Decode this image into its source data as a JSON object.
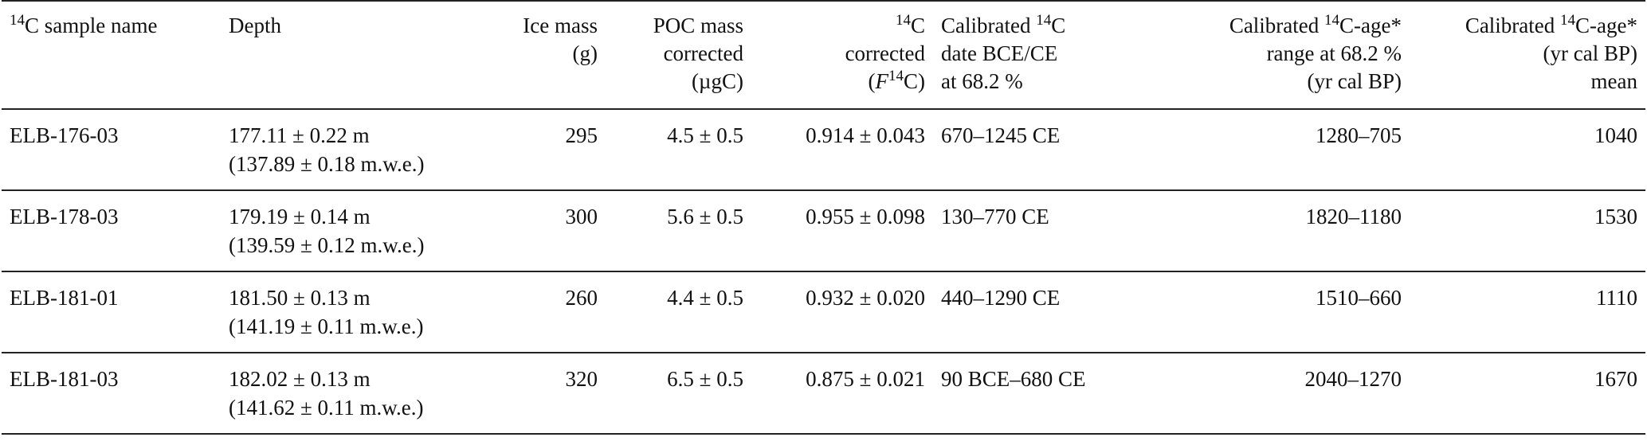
{
  "table": {
    "headers": [
      {
        "id": "sample",
        "lines": [
          [
            [
              "sup",
              "14"
            ],
            [
              "txt",
              "C sample name"
            ]
          ]
        ]
      },
      {
        "id": "depth",
        "lines": [
          [
            [
              "txt",
              "Depth"
            ]
          ]
        ]
      },
      {
        "id": "ice_mass",
        "lines": [
          [
            [
              "txt",
              "Ice mass"
            ]
          ],
          [
            [
              "txt",
              "(g)"
            ]
          ]
        ]
      },
      {
        "id": "poc_mass",
        "lines": [
          [
            [
              "txt",
              "POC mass"
            ]
          ],
          [
            [
              "txt",
              "corrected"
            ]
          ],
          [
            [
              "txt",
              "(µgC)"
            ]
          ]
        ]
      },
      {
        "id": "f14c",
        "lines": [
          [
            [
              "sup",
              "14"
            ],
            [
              "txt",
              "C"
            ]
          ],
          [
            [
              "txt",
              "corrected"
            ]
          ],
          [
            [
              "txt",
              "("
            ],
            [
              "it",
              "F"
            ],
            [
              "sup",
              "14"
            ],
            [
              "txt",
              "C)"
            ]
          ]
        ]
      },
      {
        "id": "cal_date",
        "lines": [
          [
            [
              "txt",
              "Calibrated "
            ],
            [
              "sup",
              "14"
            ],
            [
              "txt",
              "C"
            ]
          ],
          [
            [
              "txt",
              "date BCE/CE"
            ]
          ],
          [
            [
              "txt",
              "at 68.2 %"
            ]
          ]
        ]
      },
      {
        "id": "cal_range",
        "lines": [
          [
            [
              "txt",
              "Calibrated "
            ],
            [
              "sup",
              "14"
            ],
            [
              "txt",
              "C-age*"
            ]
          ],
          [
            [
              "txt",
              "range at 68.2 %"
            ]
          ],
          [
            [
              "txt",
              "(yr cal BP)"
            ]
          ]
        ]
      },
      {
        "id": "cal_mean",
        "lines": [
          [
            [
              "txt",
              "Calibrated "
            ],
            [
              "sup",
              "14"
            ],
            [
              "txt",
              "C-age*"
            ]
          ],
          [
            [
              "txt",
              "(yr cal BP)"
            ]
          ],
          [
            [
              "txt",
              "mean"
            ]
          ]
        ]
      }
    ],
    "rows": [
      {
        "sample": "ELB-176-03",
        "depth_m": "177.11 ± 0.22 m",
        "depth_mwe": "(137.89 ± 0.18 m.w.e.)",
        "ice_mass": "295",
        "poc_mass": "4.5 ± 0.5",
        "f14c": "0.914 ± 0.043",
        "cal_date": "670–1245 CE",
        "cal_range": "1280–705",
        "cal_mean": "1040"
      },
      {
        "sample": "ELB-178-03",
        "depth_m": "179.19 ± 0.14 m",
        "depth_mwe": "(139.59 ± 0.12 m.w.e.)",
        "ice_mass": "300",
        "poc_mass": "5.6 ± 0.5",
        "f14c": "0.955 ± 0.098",
        "cal_date": "130–770 CE",
        "cal_range": "1820–1180",
        "cal_mean": "1530"
      },
      {
        "sample": "ELB-181-01",
        "depth_m": "181.50 ± 0.13 m",
        "depth_mwe": "(141.19 ± 0.11 m.w.e.)",
        "ice_mass": "260",
        "poc_mass": "4.4 ± 0.5",
        "f14c": "0.932 ± 0.020",
        "cal_date": "440–1290 CE",
        "cal_range": "1510–660",
        "cal_mean": "1110"
      },
      {
        "sample": "ELB-181-03",
        "depth_m": "182.02 ± 0.13 m",
        "depth_mwe": "(141.62 ± 0.11 m.w.e.)",
        "ice_mass": "320",
        "poc_mass": "6.5 ± 0.5",
        "f14c": "0.875 ± 0.021",
        "cal_date": "90 BCE–680 CE",
        "cal_range": "2040–1270",
        "cal_mean": "1670"
      }
    ]
  }
}
